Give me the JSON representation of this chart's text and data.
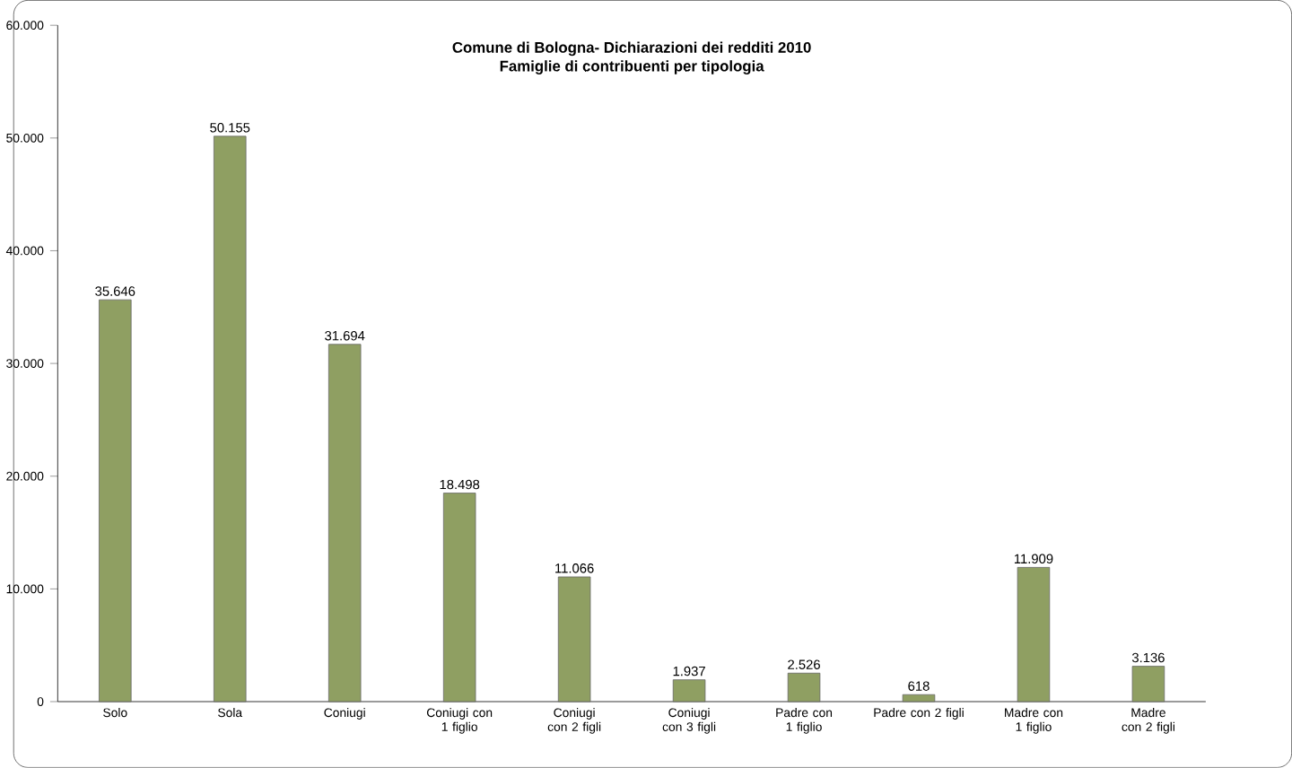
{
  "chart_data": {
    "type": "bar",
    "title": "Comune di Bologna- Dichiarazioni dei redditi 2010",
    "subtitle": "Famiglie di contribuenti  per tipologia",
    "categories": [
      "Solo",
      "Sola",
      "Coniugi",
      "Coniugi con 1 figlio",
      "Coniugi con 2 figli",
      "Coniugi con 3 figli",
      "Padre con 1 figlio",
      "Padre con 2 figli",
      "Madre con 1 figlio",
      "Madre con 2 figli"
    ],
    "values": [
      35646,
      50155,
      31694,
      18498,
      11066,
      1937,
      2526,
      618,
      11909,
      3136
    ],
    "value_labels": [
      "35.646",
      "50.155",
      "31.694",
      "18.498",
      "11.066",
      "1.937",
      "2.526",
      "618",
      "11.909",
      "3.136"
    ],
    "color": "#8f9f62",
    "ylim": [
      0,
      60000
    ],
    "yticks": [
      0,
      {
        "value": 10000,
        "label": "10.000"
      },
      {
        "value": 20000,
        "label": "20.000"
      },
      {
        "value": 30000,
        "label": "30.000"
      },
      {
        "value": 40000,
        "label": "40.000"
      },
      {
        "value": 50000,
        "label": "50.000"
      },
      {
        "value": 60000,
        "label": "60.000"
      }
    ]
  }
}
